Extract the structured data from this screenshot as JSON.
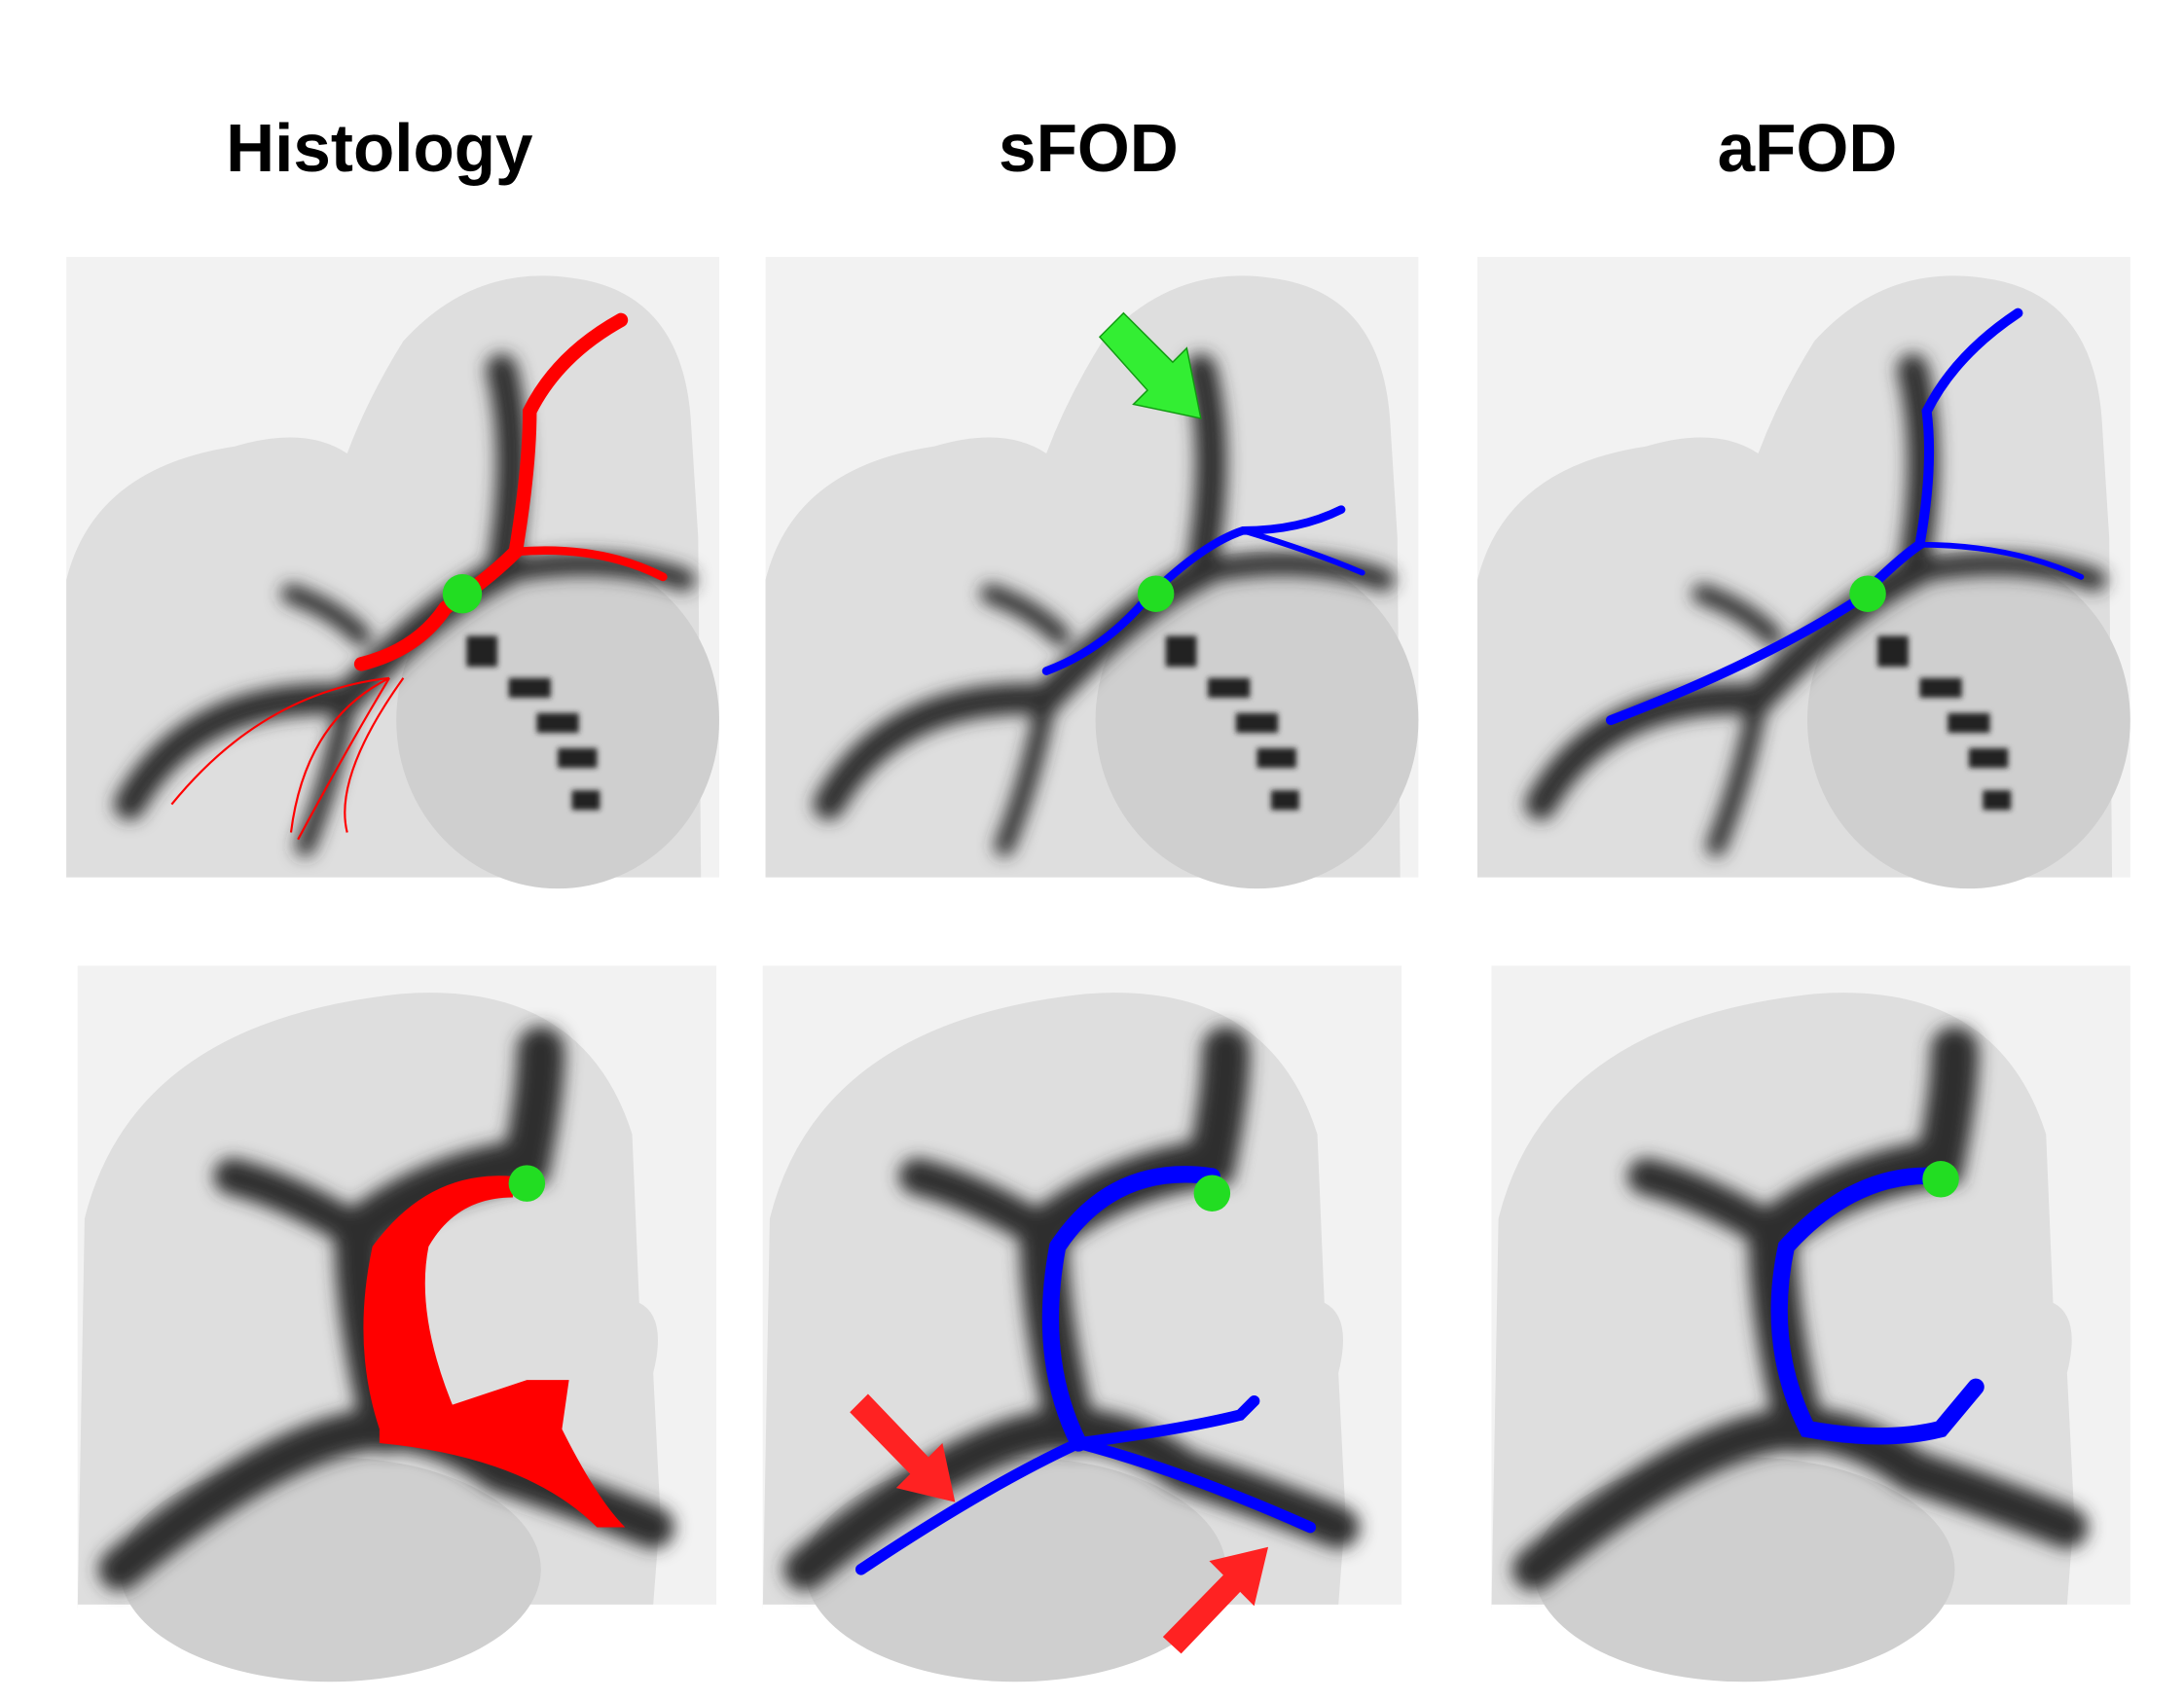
{
  "headers": [
    "Histology",
    "sFOD",
    "aFOD"
  ]
}
